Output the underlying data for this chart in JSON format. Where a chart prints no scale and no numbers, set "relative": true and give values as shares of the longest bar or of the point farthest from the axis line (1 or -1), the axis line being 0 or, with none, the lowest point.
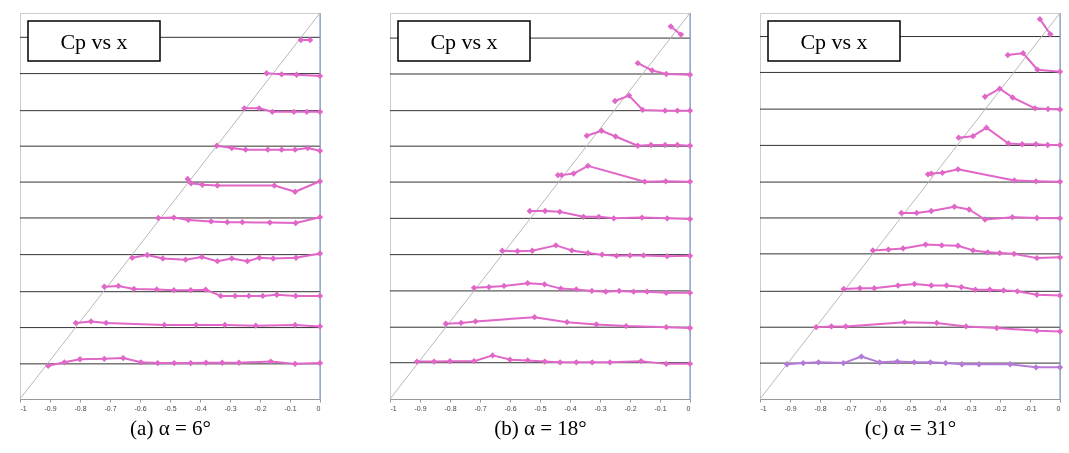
{
  "chart_data": [
    {
      "type": "line",
      "relative": true,
      "xlabel": "(a) α = 6°",
      "annotations": [
        "Cp vs x"
      ],
      "marker": "diamond",
      "line_style": "solid",
      "xlim": [
        -1,
        0
      ],
      "xticks": [
        -1,
        -0.9,
        -0.8,
        -0.7,
        -0.6,
        -0.5,
        -0.4,
        -0.3,
        -0.2,
        -0.1,
        0
      ],
      "ref_lines": [
        {
          "axis": "y",
          "value": 0.091,
          "color": "#333333"
        },
        {
          "axis": "y",
          "value": 0.185,
          "color": "#333333"
        },
        {
          "axis": "y",
          "value": 0.278,
          "color": "#333333"
        },
        {
          "axis": "y",
          "value": 0.374,
          "color": "#333333"
        },
        {
          "axis": "y",
          "value": 0.469,
          "color": "#333333"
        },
        {
          "axis": "y",
          "value": 0.562,
          "color": "#333333"
        },
        {
          "axis": "y",
          "value": 0.655,
          "color": "#333333"
        },
        {
          "axis": "y",
          "value": 0.747,
          "color": "#333333"
        },
        {
          "axis": "y",
          "value": 0.843,
          "color": "#333333"
        },
        {
          "axis": "y",
          "value": 0.937,
          "color": "#333333"
        },
        {
          "axis": "x",
          "value": 0,
          "color": "#6b8cc0"
        }
      ],
      "series": [
        {
          "color": "#b8b8b8",
          "marker": "none",
          "x": [
            -1,
            0
          ],
          "values": [
            0,
            1
          ]
        },
        {
          "color": "#e066c8",
          "x": [
            -0.906,
            -0.852,
            -0.8,
            -0.719,
            -0.656,
            -0.597,
            -0.541,
            -0.486,
            -0.431,
            -0.38,
            -0.326,
            -0.27,
            -0.164,
            -0.083,
            0
          ],
          "values": [
            0.086,
            0.095,
            0.103,
            0.104,
            0.106,
            0.095,
            0.093,
            0.093,
            0.093,
            0.094,
            0.094,
            0.094,
            0.097,
            0.091,
            0.093
          ]
        },
        {
          "color": "#e066c8",
          "x": [
            -0.814,
            -0.763,
            -0.713,
            -0.519,
            -0.413,
            -0.317,
            -0.214,
            -0.083,
            0
          ],
          "values": [
            0.197,
            0.201,
            0.197,
            0.192,
            0.192,
            0.192,
            0.19,
            0.192,
            0.188
          ]
        },
        {
          "color": "#e066c8",
          "x": [
            -0.719,
            -0.672,
            -0.62,
            -0.544,
            -0.487,
            -0.431,
            -0.381,
            -0.331,
            -0.283,
            -0.237,
            -0.191,
            -0.144,
            -0.081,
            0
          ],
          "values": [
            0.291,
            0.293,
            0.285,
            0.284,
            0.282,
            0.282,
            0.283,
            0.267,
            0.267,
            0.267,
            0.267,
            0.27,
            0.267,
            0.267
          ]
        },
        {
          "color": "#e066c8",
          "x": [
            -0.626,
            -0.576,
            -0.524,
            -0.448,
            -0.394,
            -0.342,
            -0.294,
            -0.242,
            -0.202,
            -0.156,
            -0.08,
            0
          ],
          "values": [
            0.366,
            0.373,
            0.364,
            0.361,
            0.368,
            0.357,
            0.364,
            0.357,
            0.366,
            0.364,
            0.366,
            0.377
          ]
        },
        {
          "color": "#e066c8",
          "x": [
            -0.539,
            -0.487,
            -0.439,
            -0.363,
            -0.309,
            -0.259,
            -0.167,
            -0.081,
            0
          ],
          "values": [
            0.469,
            0.47,
            0.464,
            0.46,
            0.458,
            0.458,
            0.457,
            0.456,
            0.471
          ]
        },
        {
          "color": "#e066c8",
          "x": [
            -0.441,
            -0.43,
            -0.392,
            -0.342,
            -0.152,
            -0.083,
            0
          ],
          "values": [
            0.57,
            0.559,
            0.555,
            0.553,
            0.553,
            0.537,
            0.564
          ]
        },
        {
          "color": "#e066c8",
          "x": [
            -0.344,
            -0.294,
            -0.248,
            -0.174,
            -0.128,
            -0.083,
            -0.041,
            0
          ],
          "values": [
            0.656,
            0.65,
            0.646,
            0.646,
            0.646,
            0.646,
            0.65,
            0.643
          ]
        },
        {
          "color": "#e066c8",
          "x": [
            -0.252,
            -0.203,
            -0.159,
            -0.087,
            -0.044,
            0
          ],
          "values": [
            0.753,
            0.753,
            0.744,
            0.744,
            0.744,
            0.744
          ]
        },
        {
          "color": "#e066c8",
          "x": [
            -0.178,
            -0.128,
            -0.078,
            0
          ],
          "values": [
            0.844,
            0.841,
            0.84,
            0.837
          ]
        },
        {
          "color": "#e066c8",
          "x": [
            -0.064,
            -0.033
          ],
          "values": [
            0.93,
            0.93
          ]
        }
      ]
    },
    {
      "type": "line",
      "relative": true,
      "xlabel": "(b) α = 18°",
      "annotations": [
        "Cp vs x"
      ],
      "marker": "diamond",
      "line_style": "solid",
      "xlim": [
        -1,
        0
      ],
      "xticks": [
        -1,
        -0.9,
        -0.8,
        -0.7,
        -0.6,
        -0.5,
        -0.4,
        -0.3,
        -0.2,
        -0.1,
        0
      ],
      "ref_lines": [
        {
          "axis": "y",
          "value": 0.094,
          "color": "#333333"
        },
        {
          "axis": "y",
          "value": 0.186,
          "color": "#333333"
        },
        {
          "axis": "y",
          "value": 0.28,
          "color": "#333333"
        },
        {
          "axis": "y",
          "value": 0.374,
          "color": "#333333"
        },
        {
          "axis": "y",
          "value": 0.468,
          "color": "#333333"
        },
        {
          "axis": "y",
          "value": 0.562,
          "color": "#333333"
        },
        {
          "axis": "y",
          "value": 0.655,
          "color": "#333333"
        },
        {
          "axis": "y",
          "value": 0.747,
          "color": "#333333"
        },
        {
          "axis": "y",
          "value": 0.842,
          "color": "#333333"
        },
        {
          "axis": "y",
          "value": 0.935,
          "color": "#333333"
        },
        {
          "axis": "x",
          "value": 0,
          "color": "#6b8cc0"
        }
      ],
      "series": [
        {
          "color": "#b8b8b8",
          "marker": "none",
          "x": [
            -1,
            0
          ],
          "values": [
            0,
            1
          ]
        },
        {
          "color": "#e066c8",
          "x": [
            -0.91,
            -0.853,
            -0.8,
            -0.72,
            -0.658,
            -0.6,
            -0.541,
            -0.484,
            -0.433,
            -0.379,
            -0.326,
            -0.267,
            -0.163,
            -0.079,
            0
          ],
          "values": [
            0.097,
            0.097,
            0.098,
            0.098,
            0.113,
            0.102,
            0.1,
            0.097,
            0.095,
            0.095,
            0.095,
            0.095,
            0.098,
            0.091,
            0.091
          ]
        },
        {
          "color": "#e066c8",
          "x": [
            -0.814,
            -0.763,
            -0.715,
            -0.518,
            -0.41,
            -0.312,
            -0.213,
            -0.079,
            0
          ],
          "values": [
            0.195,
            0.197,
            0.201,
            0.212,
            0.199,
            0.193,
            0.189,
            0.186,
            0.184
          ]
        },
        {
          "color": "#e066c8",
          "x": [
            -0.72,
            -0.67,
            -0.62,
            -0.541,
            -0.485,
            -0.431,
            -0.379,
            -0.327,
            -0.281,
            -0.236,
            -0.188,
            -0.143,
            -0.079,
            0
          ],
          "values": [
            0.288,
            0.29,
            0.293,
            0.3,
            0.297,
            0.286,
            0.284,
            0.28,
            0.278,
            0.28,
            0.278,
            0.278,
            0.275,
            0.275
          ]
        },
        {
          "color": "#e066c8",
          "x": [
            -0.626,
            -0.575,
            -0.526,
            -0.447,
            -0.394,
            -0.34,
            -0.293,
            -0.245,
            -0.2,
            -0.155,
            -0.076,
            0
          ],
          "values": [
            0.384,
            0.383,
            0.384,
            0.398,
            0.385,
            0.378,
            0.374,
            0.371,
            0.372,
            0.372,
            0.37,
            0.371
          ]
        },
        {
          "color": "#e066c8",
          "x": [
            -0.534,
            -0.483,
            -0.434,
            -0.355,
            -0.304,
            -0.254,
            -0.16,
            -0.076,
            0
          ],
          "values": [
            0.487,
            0.487,
            0.485,
            0.472,
            0.472,
            0.468,
            0.47,
            0.468,
            0.466
          ]
        },
        {
          "color": "#e066c8",
          "x": [
            -0.44,
            -0.428,
            -0.388,
            -0.34,
            -0.151,
            -0.081,
            0
          ],
          "values": [
            0.58,
            0.58,
            0.584,
            0.604,
            0.563,
            0.564,
            0.563
          ]
        },
        {
          "color": "#e066c8",
          "x": [
            -0.344,
            -0.295,
            -0.248,
            -0.174,
            -0.13,
            -0.083,
            -0.042,
            0
          ],
          "values": [
            0.682,
            0.695,
            0.68,
            0.656,
            0.658,
            0.658,
            0.658,
            0.656
          ]
        },
        {
          "color": "#e066c8",
          "x": [
            -0.25,
            -0.203,
            -0.158,
            -0.083,
            -0.042,
            0
          ],
          "values": [
            0.772,
            0.786,
            0.749,
            0.747,
            0.747,
            0.747
          ]
        },
        {
          "color": "#e066c8",
          "x": [
            -0.174,
            -0.126,
            -0.079,
            0
          ],
          "values": [
            0.87,
            0.851,
            0.842,
            0.84
          ]
        },
        {
          "color": "#e066c8",
          "x": [
            -0.064,
            -0.03
          ],
          "values": [
            0.965,
            0.944
          ]
        }
      ]
    },
    {
      "type": "line",
      "relative": true,
      "xlabel": "(c) α = 31°",
      "annotations": [
        "Cp vs x"
      ],
      "marker": "diamond",
      "line_style": "solid",
      "xlim": [
        -1,
        0
      ],
      "xticks": [
        -1,
        -0.9,
        -0.8,
        -0.7,
        -0.6,
        -0.5,
        -0.4,
        -0.3,
        -0.2,
        -0.1,
        0
      ],
      "ref_lines": [
        {
          "axis": "y",
          "value": 0.093,
          "color": "#333333"
        },
        {
          "axis": "y",
          "value": 0.186,
          "color": "#333333"
        },
        {
          "axis": "y",
          "value": 0.279,
          "color": "#333333"
        },
        {
          "axis": "y",
          "value": 0.376,
          "color": "#333333"
        },
        {
          "axis": "y",
          "value": 0.469,
          "color": "#333333"
        },
        {
          "axis": "y",
          "value": 0.562,
          "color": "#333333"
        },
        {
          "axis": "y",
          "value": 0.657,
          "color": "#333333"
        },
        {
          "axis": "y",
          "value": 0.751,
          "color": "#333333"
        },
        {
          "axis": "y",
          "value": 0.846,
          "color": "#333333"
        },
        {
          "axis": "y",
          "value": 0.939,
          "color": "#333333"
        },
        {
          "axis": "x",
          "value": 0,
          "color": "#6b8cc0"
        }
      ],
      "series": [
        {
          "color": "#b8b8b8",
          "marker": "none",
          "x": [
            -1,
            0
          ],
          "values": [
            0,
            1
          ]
        },
        {
          "color": "#b57ad8",
          "x": [
            -0.91,
            -0.856,
            -0.805,
            -0.722,
            -0.662,
            -0.601,
            -0.542,
            -0.486,
            -0.432,
            -0.381,
            -0.327,
            -0.27,
            -0.166,
            -0.08,
            0
          ],
          "values": [
            0.09,
            0.093,
            0.095,
            0.093,
            0.11,
            0.095,
            0.097,
            0.095,
            0.095,
            0.093,
            0.09,
            0.09,
            0.09,
            0.082,
            0.082
          ]
        },
        {
          "color": "#e066c8",
          "x": [
            -0.813,
            -0.762,
            -0.714,
            -0.518,
            -0.411,
            -0.313,
            -0.211,
            -0.077,
            0
          ],
          "values": [
            0.186,
            0.188,
            0.188,
            0.199,
            0.197,
            0.188,
            0.184,
            0.177,
            0.175
          ]
        },
        {
          "color": "#e066c8",
          "x": [
            -0.721,
            -0.667,
            -0.619,
            -0.54,
            -0.485,
            -0.429,
            -0.378,
            -0.329,
            -0.282,
            -0.234,
            -0.188,
            -0.142,
            -0.077,
            0
          ],
          "values": [
            0.285,
            0.287,
            0.287,
            0.294,
            0.298,
            0.294,
            0.294,
            0.29,
            0.283,
            0.283,
            0.281,
            0.279,
            0.27,
            0.268
          ]
        },
        {
          "color": "#e066c8",
          "x": [
            -0.624,
            -0.572,
            -0.523,
            -0.448,
            -0.394,
            -0.34,
            -0.29,
            -0.241,
            -0.201,
            -0.153,
            -0.077,
            0
          ],
          "values": [
            0.385,
            0.387,
            0.39,
            0.4,
            0.398,
            0.397,
            0.385,
            0.38,
            0.378,
            0.376,
            0.365,
            0.367
          ]
        },
        {
          "color": "#e066c8",
          "x": [
            -0.529,
            -0.478,
            -0.429,
            -0.352,
            -0.303,
            -0.25,
            -0.159,
            -0.077,
            0
          ],
          "values": [
            0.482,
            0.482,
            0.487,
            0.498,
            0.491,
            0.465,
            0.471,
            0.469,
            0.468
          ]
        },
        {
          "color": "#e066c8",
          "x": [
            -0.44,
            -0.429,
            -0.392,
            -0.34,
            -0.152,
            -0.08,
            0
          ],
          "values": [
            0.582,
            0.584,
            0.586,
            0.595,
            0.566,
            0.564,
            0.563
          ]
        },
        {
          "color": "#e066c8",
          "x": [
            -0.338,
            -0.29,
            -0.245,
            -0.172,
            -0.126,
            -0.08,
            -0.041,
            0
          ],
          "values": [
            0.677,
            0.681,
            0.703,
            0.662,
            0.66,
            0.66,
            0.658,
            0.658
          ]
        },
        {
          "color": "#e066c8",
          "x": [
            -0.25,
            -0.201,
            -0.158,
            -0.083,
            -0.04,
            0
          ],
          "values": [
            0.783,
            0.804,
            0.781,
            0.753,
            0.751,
            0.75
          ]
        },
        {
          "color": "#e066c8",
          "x": [
            -0.174,
            -0.123,
            -0.075,
            0
          ],
          "values": [
            0.891,
            0.896,
            0.853,
            0.848
          ]
        },
        {
          "color": "#e066c8",
          "x": [
            -0.067,
            -0.032
          ],
          "values": [
            0.984,
            0.945
          ]
        }
      ]
    }
  ]
}
